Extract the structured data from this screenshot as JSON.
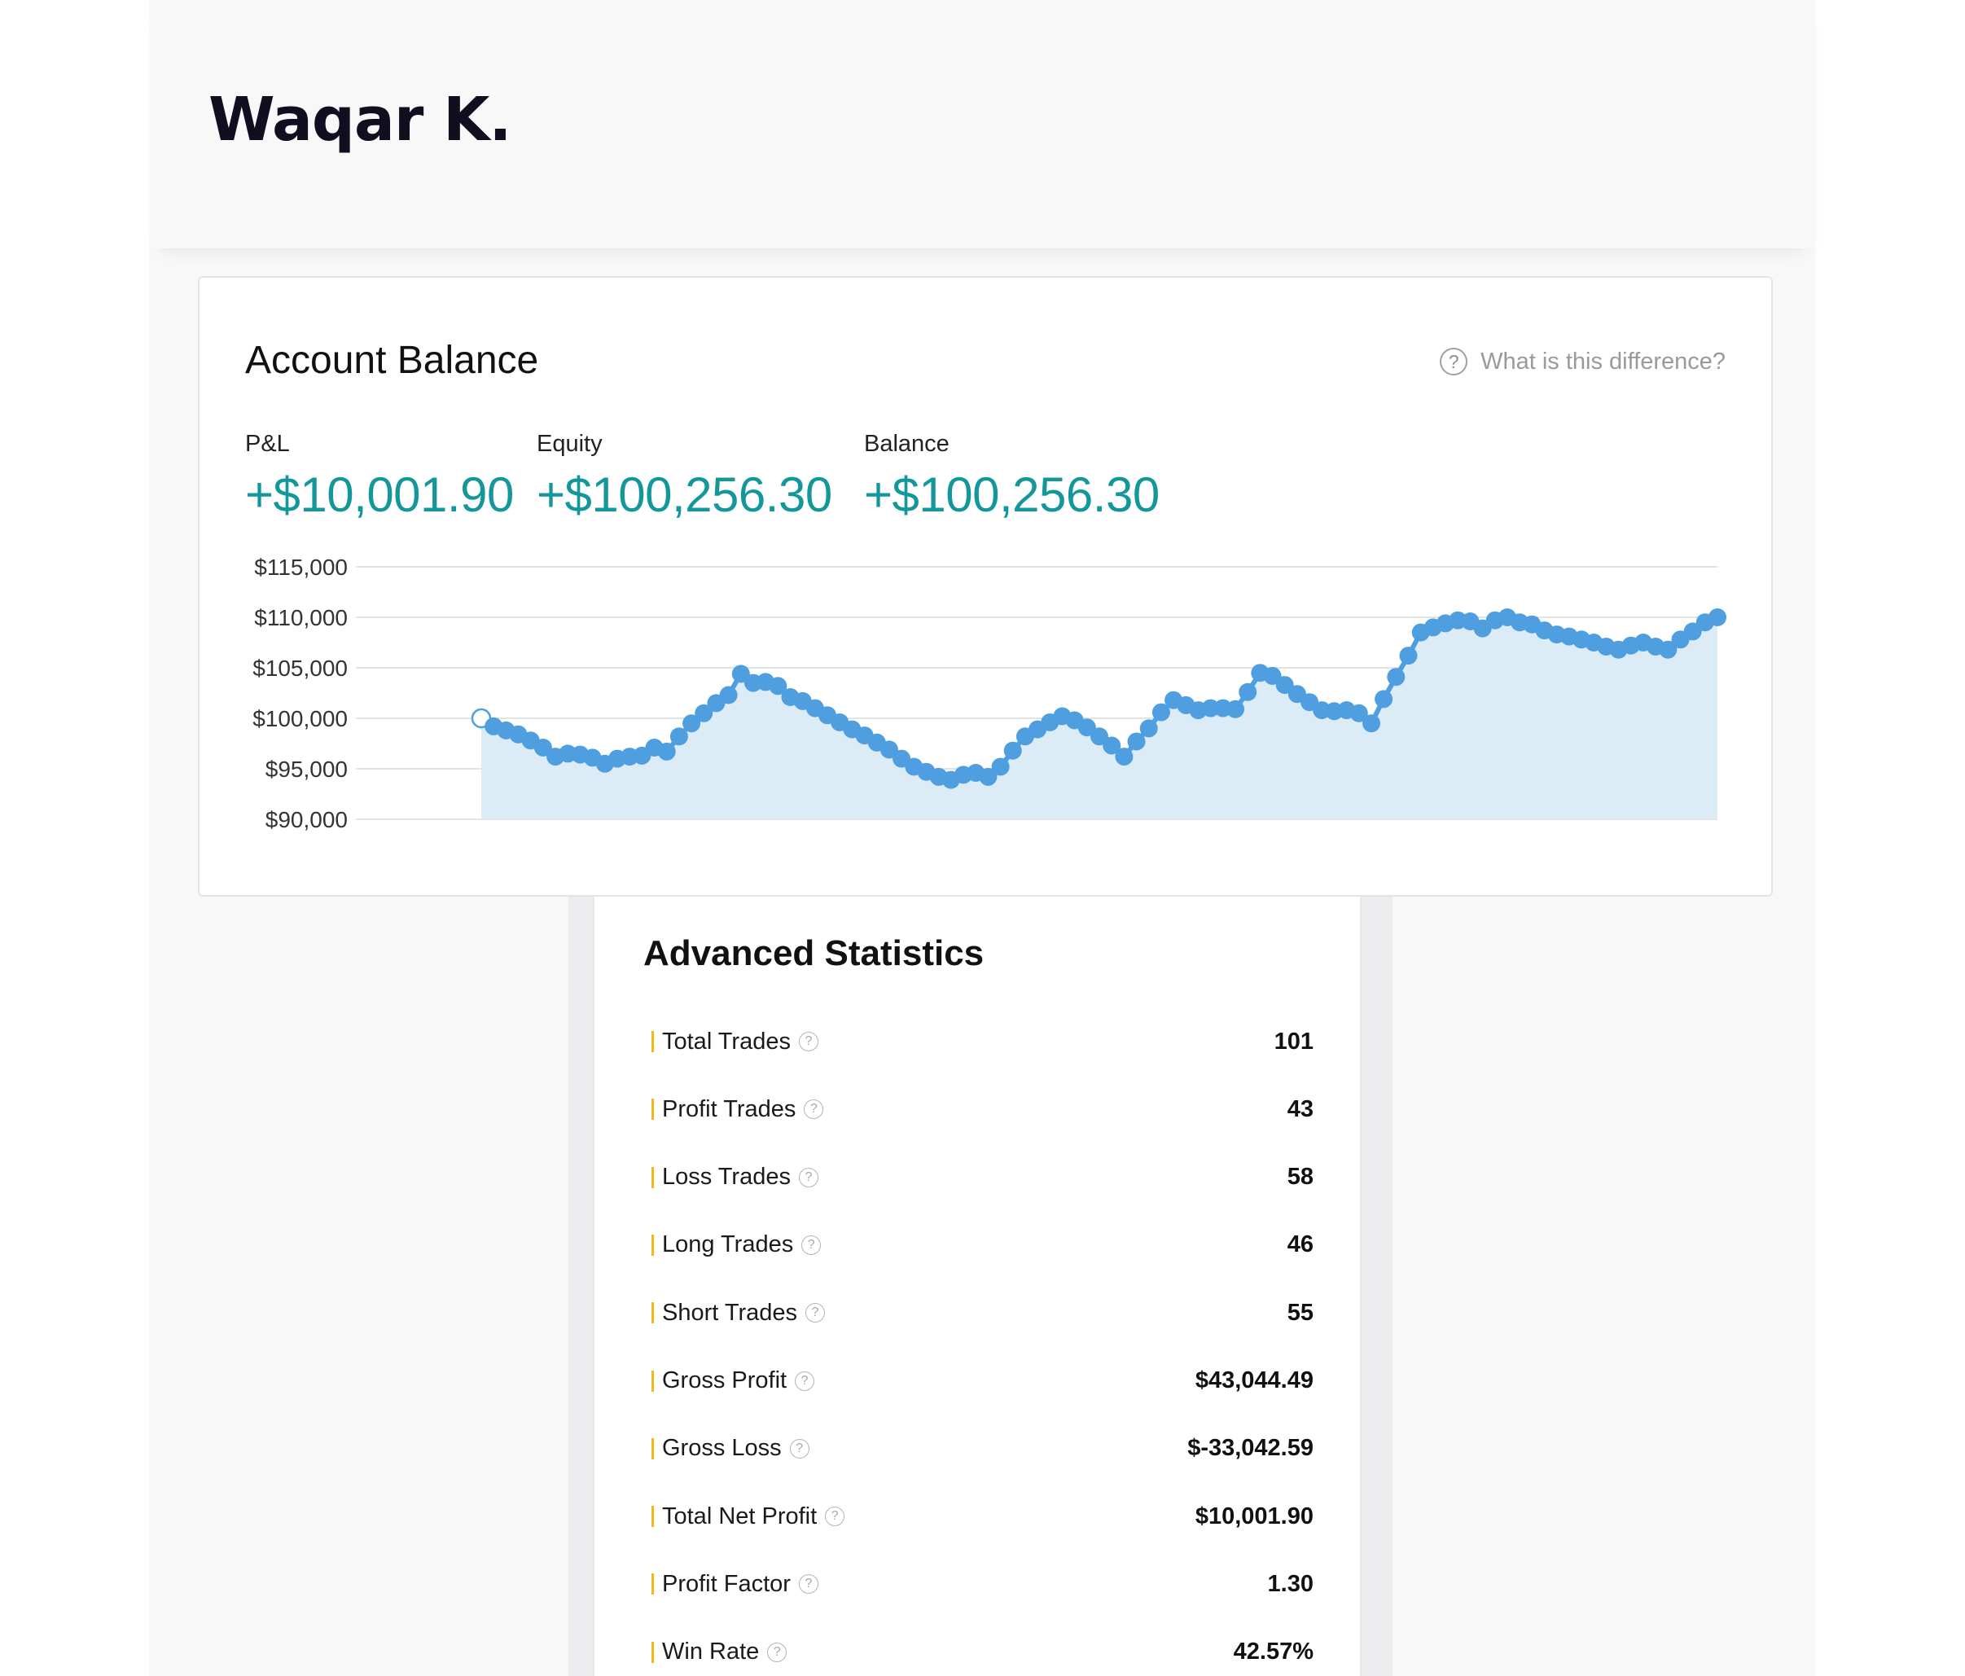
{
  "profile": {
    "name": "Waqar K."
  },
  "account_balance": {
    "title": "Account Balance",
    "help_text": "What is this difference?",
    "help_icon": "question-circle-icon",
    "metrics": [
      {
        "label": "P&L",
        "value": "+$10,001.90"
      },
      {
        "label": "Equity",
        "value": "+$100,256.30"
      },
      {
        "label": "Balance",
        "value": "+$100,256.30"
      }
    ],
    "value_color": "#14979a"
  },
  "chart_data": {
    "type": "area",
    "title": "",
    "xlabel": "",
    "ylabel": "",
    "ylim": [
      90000,
      115000
    ],
    "y_ticks": [
      "$115,000",
      "$110,000",
      "$105,000",
      "$100,000",
      "$95,000",
      "$90,000"
    ],
    "y_tick_values": [
      115000,
      110000,
      105000,
      100000,
      95000,
      90000
    ],
    "grid": true,
    "line_color": "#4e9ee0",
    "fill_color": "#dcecf7",
    "series": [
      {
        "values": [
          100000,
          99200,
          98800,
          98400,
          97800,
          97100,
          96200,
          96500,
          96400,
          96100,
          95500,
          96000,
          96200,
          96300,
          97100,
          96700,
          98200,
          99500,
          100500,
          101500,
          102300,
          104400,
          103500,
          103600,
          103200,
          102100,
          101700,
          101000,
          100300,
          99600,
          98900,
          98300,
          97600,
          96900,
          96000,
          95200,
          94700,
          94200,
          93900,
          94400,
          94600,
          94200,
          95200,
          96800,
          98200,
          98900,
          99600,
          100200,
          99800,
          99100,
          98200,
          97300,
          96200,
          97700,
          99000,
          100600,
          101800,
          101300,
          100800,
          101000,
          101000,
          100900,
          102600,
          104500,
          104200,
          103300,
          102400,
          101600,
          100800,
          100700,
          100800,
          100500,
          99500,
          101900,
          104100,
          106200,
          108500,
          109000,
          109400,
          109700,
          109600,
          108900,
          109700,
          110000,
          109500,
          109300,
          108700,
          108300,
          108100,
          107800,
          107500,
          107100,
          106800,
          107200,
          107500,
          107100,
          106800,
          107800,
          108600,
          109500,
          110000
        ]
      }
    ]
  },
  "advanced_statistics": {
    "title": "Advanced Statistics",
    "accent_color": "#f1b81c",
    "help_icon": "question-circle-icon",
    "rows": [
      {
        "label": "Total Trades",
        "value": "101"
      },
      {
        "label": "Profit Trades",
        "value": "43"
      },
      {
        "label": "Loss Trades",
        "value": "58"
      },
      {
        "label": "Long Trades",
        "value": "46"
      },
      {
        "label": "Short Trades",
        "value": "55"
      },
      {
        "label": "Gross Profit",
        "value": "$43,044.49"
      },
      {
        "label": "Gross Loss",
        "value": "$-33,042.59"
      },
      {
        "label": "Total Net Profit",
        "value": "$10,001.90"
      },
      {
        "label": "Profit Factor",
        "value": "1.30"
      },
      {
        "label": "Win Rate",
        "value": "42.57%"
      }
    ]
  }
}
